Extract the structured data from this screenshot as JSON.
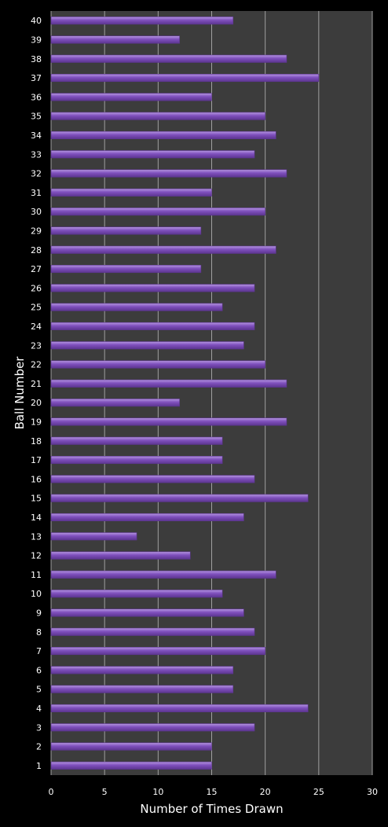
{
  "chart_data": {
    "type": "bar",
    "orientation": "horizontal",
    "xlabel": "Number of Times Drawn",
    "ylabel": "Ball Number",
    "xlim": [
      0,
      30
    ],
    "xticks": [
      "0",
      "5",
      "10",
      "15",
      "20",
      "25",
      "30"
    ],
    "grid": true,
    "categories": [
      "1",
      "2",
      "3",
      "4",
      "5",
      "6",
      "7",
      "8",
      "9",
      "10",
      "11",
      "12",
      "13",
      "14",
      "15",
      "16",
      "17",
      "18",
      "19",
      "20",
      "21",
      "22",
      "23",
      "24",
      "25",
      "26",
      "27",
      "28",
      "29",
      "30",
      "31",
      "32",
      "33",
      "34",
      "35",
      "36",
      "37",
      "38",
      "39",
      "40"
    ],
    "values": [
      15,
      15,
      19,
      24,
      17,
      17,
      20,
      19,
      18,
      16,
      21,
      13,
      8,
      18,
      24,
      19,
      16,
      16,
      22,
      12,
      22,
      20,
      18,
      19,
      16,
      19,
      14,
      21,
      14,
      20,
      15,
      22,
      19,
      21,
      20,
      15,
      25,
      22,
      12,
      17
    ],
    "colors": {
      "background": "#000000",
      "plot_area": "#3c3c3c",
      "grid": "#a0a0a0",
      "bar": "#7f50bd",
      "bar_light": "#b596e0",
      "bar_dark": "#5c3590",
      "text": "#ffffff"
    }
  }
}
